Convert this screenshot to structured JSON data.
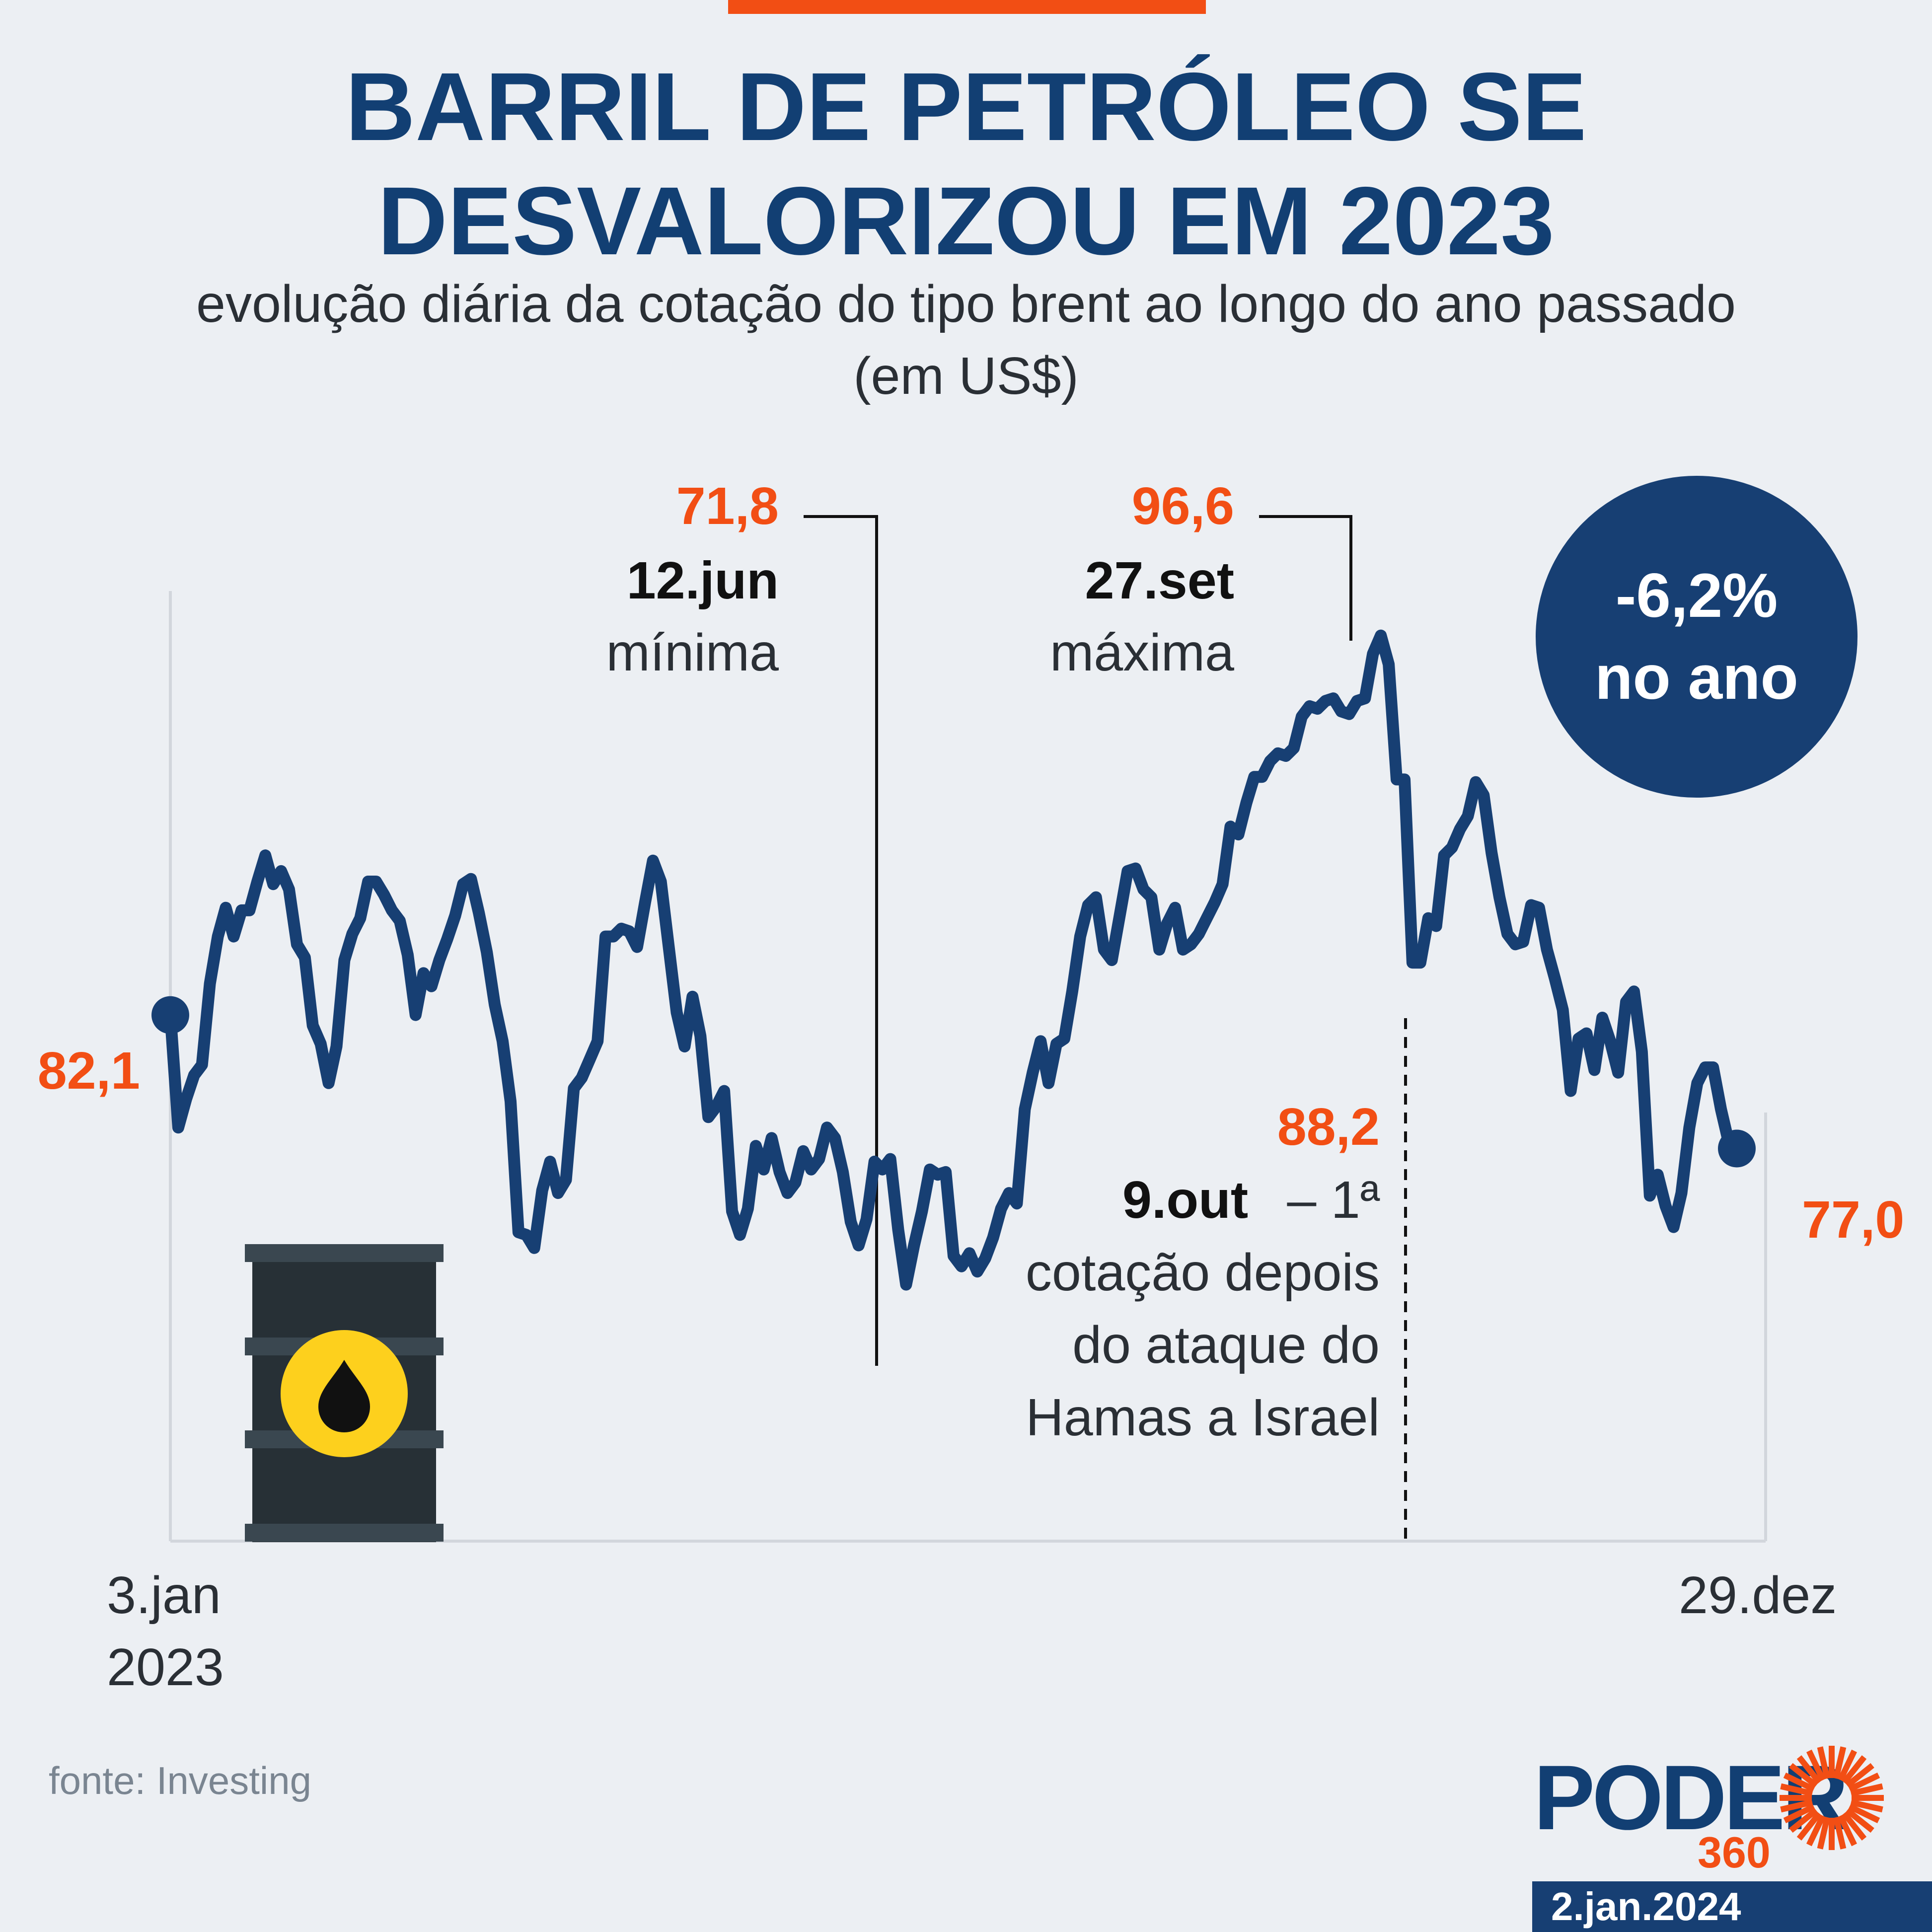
{
  "header": {
    "title_line1": "BARRIL DE PETRÓLEO SE",
    "title_line2": "DESVALORIZOU EM 2023",
    "subtitle_line1": "evolução diária da cotação do tipo brent ao longo do ano passado",
    "subtitle_line2": "(em US$)"
  },
  "badge": {
    "value": "-6,2%",
    "label": "no ano"
  },
  "colors": {
    "line": "#173f73",
    "accent": "#f24e14",
    "title": "#123f73",
    "background": "#eceff3"
  },
  "icons": [
    "oil-barrel-icon",
    "oil-drop-icon"
  ],
  "chart_data": {
    "type": "line",
    "title": "BARRIL DE PETRÓLEO SE DESVALORIZOU EM 2023",
    "subtitle": "evolução diária da cotação do tipo brent ao longo do ano passado (em US$)",
    "xlabel": "",
    "ylabel": "",
    "x_start_label": "3.jan\n2023",
    "x_end_label": "29.dez",
    "x_start_line1": "3.jan",
    "x_start_line2": "2023",
    "x_end": "29.dez",
    "ylim": [
      62,
      98.3
    ],
    "grid": false,
    "start_value_label": "82,1",
    "end_value_label": "77,0",
    "annotations": [
      {
        "value": "71,8",
        "date": "12.jun",
        "note": "mínima"
      },
      {
        "value": "96,6",
        "date": "27.set",
        "note": "máxima"
      },
      {
        "value": "88,2",
        "date": "9.out",
        "note_line1": "– 1ª",
        "note_line2": "cotação depois",
        "note_line3": "do ataque do",
        "note_line4": "Hamas a Israel"
      }
    ],
    "series": [
      {
        "values": [
          82.1,
          77.8,
          78.9,
          79.8,
          80.2,
          83.3,
          85.1,
          86.2,
          85.1,
          86.1,
          86.1,
          87.2,
          88.2,
          87.1,
          87.6,
          86.9,
          84.8,
          84.3,
          81.7,
          81.0,
          79.5,
          80.9,
          84.2,
          85.2,
          85.8,
          87.2,
          87.2,
          86.7,
          86.1,
          85.7,
          84.4,
          82.1,
          83.7,
          83.2,
          84.2,
          85.0,
          85.9,
          87.1,
          87.3,
          86.0,
          84.5,
          82.5,
          81.1,
          78.8,
          73.8,
          73.7,
          73.2,
          75.4,
          76.5,
          75.3,
          75.8,
          79.3,
          79.7,
          80.4,
          81.1,
          85.1,
          85.1,
          85.4,
          85.3,
          84.7,
          86.4,
          88.0,
          87.2,
          84.7,
          82.2,
          80.9,
          82.8,
          81.3,
          78.2,
          78.6,
          79.2,
          74.6,
          73.7,
          74.7,
          77.1,
          76.2,
          77.4,
          76.1,
          75.3,
          75.7,
          76.9,
          76.2,
          76.6,
          77.8,
          77.4,
          76.1,
          74.2,
          73.3,
          74.3,
          76.5,
          76.2,
          76.6,
          73.9,
          71.8,
          73.3,
          74.6,
          76.2,
          76.0,
          76.1,
          72.9,
          72.5,
          73.0,
          72.3,
          72.8,
          73.6,
          74.7,
          75.3,
          74.9,
          78.5,
          79.9,
          81.1,
          79.5,
          81.0,
          81.2,
          83.0,
          85.1,
          86.3,
          86.6,
          84.6,
          84.2,
          85.9,
          87.6,
          87.7,
          86.9,
          86.6,
          84.6,
          85.6,
          86.2,
          84.6,
          84.8,
          85.2,
          85.8,
          86.4,
          87.1,
          89.3,
          89.0,
          90.2,
          91.2,
          91.2,
          91.8,
          92.1,
          92.0,
          92.3,
          93.5,
          93.9,
          93.8,
          94.1,
          94.2,
          93.7,
          93.6,
          94.1,
          94.2,
          95.9,
          96.6,
          95.5,
          91.1,
          91.1,
          84.1,
          84.1,
          85.8,
          85.5,
          88.2,
          88.5,
          89.2,
          89.7,
          91.0,
          90.5,
          88.3,
          86.6,
          85.2,
          84.8,
          84.9,
          86.3,
          86.2,
          84.6,
          83.5,
          82.3,
          79.2,
          81.2,
          81.4,
          80.0,
          82.0,
          81.1,
          79.9,
          82.6,
          83.0,
          80.7,
          75.2,
          76.0,
          74.8,
          74.0,
          75.3,
          77.8,
          79.5,
          80.1,
          80.1,
          78.5,
          77.2,
          77.0
        ]
      }
    ]
  },
  "footer": {
    "source": "fonte: Investing",
    "logo_text": "PODER",
    "logo_number": "360",
    "date": "2.jan.2024"
  }
}
